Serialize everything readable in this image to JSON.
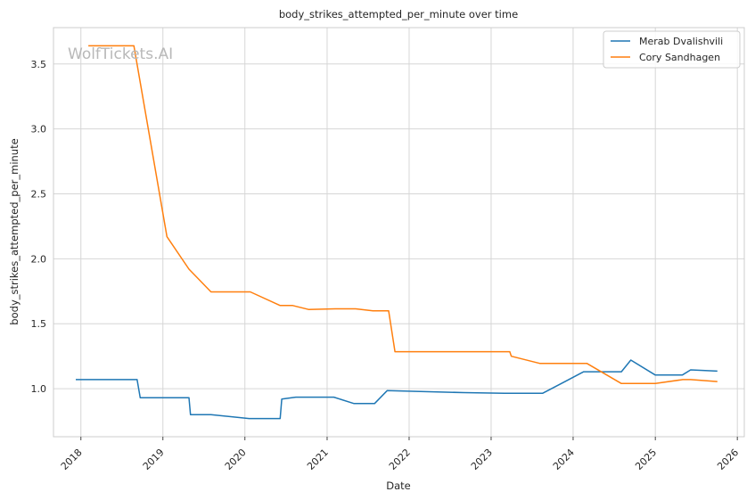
{
  "chart_data": {
    "type": "line",
    "title": "body_strikes_attempted_per_minute over time",
    "xlabel": "Date",
    "ylabel": "body_strikes_attempted_per_minute",
    "watermark": "WolfTickets.AI",
    "xlim": [
      "2017-09-01",
      "2026-02-01"
    ],
    "ylim": [
      0.63,
      3.78
    ],
    "x_ticks": [
      "2018",
      "2019",
      "2020",
      "2021",
      "2022",
      "2023",
      "2024",
      "2025",
      "2026"
    ],
    "y_ticks": [
      "1.0",
      "1.5",
      "2.0",
      "2.5",
      "3.0",
      "3.5"
    ],
    "y_tick_values": [
      1.0,
      1.5,
      2.0,
      2.5,
      3.0,
      3.5
    ],
    "grid": true,
    "legend_position": "top-right",
    "series": [
      {
        "name": "Merab Dvalishvili",
        "color": "#1f77b4",
        "x": [
          "2017-12-09",
          "2018-09-08",
          "2018-09-22",
          "2019-04-27",
          "2019-05-04",
          "2019-08-03",
          "2020-01-20",
          "2020-06-06",
          "2020-06-13",
          "2020-08-15",
          "2021-01-31",
          "2021-05-01",
          "2021-07-31",
          "2021-09-25",
          "2022-09-01",
          "2023-03-01",
          "2023-08-19",
          "2024-02-17",
          "2024-08-03",
          "2024-09-14",
          "2025-01-01",
          "2025-05-01",
          "2025-06-07",
          "2025-10-04"
        ],
        "y": [
          1.07,
          1.07,
          0.93,
          0.93,
          0.8,
          0.8,
          0.77,
          0.77,
          0.92,
          0.935,
          0.935,
          0.885,
          0.885,
          0.985,
          0.97,
          0.965,
          0.965,
          1.13,
          1.13,
          1.22,
          1.105,
          1.105,
          1.145,
          1.135
        ]
      },
      {
        "name": "Cory Sandhagen",
        "color": "#ff7f0e",
        "x": [
          "2018-02-03",
          "2018-08-25",
          "2019-01-19",
          "2019-04-27",
          "2019-08-03",
          "2020-01-25",
          "2020-06-06",
          "2020-08-01",
          "2020-10-10",
          "2021-02-06",
          "2021-05-08",
          "2021-07-24",
          "2021-10-02",
          "2021-10-30",
          "2023-03-25",
          "2023-04-01",
          "2023-08-05",
          "2024-03-02",
          "2024-08-03",
          "2025-01-01",
          "2025-05-03",
          "2025-06-07",
          "2025-10-04"
        ],
        "y": [
          3.64,
          3.64,
          2.17,
          1.92,
          1.745,
          1.745,
          1.64,
          1.64,
          1.61,
          1.615,
          1.615,
          1.6,
          1.6,
          1.285,
          1.285,
          1.25,
          1.195,
          1.195,
          1.04,
          1.04,
          1.07,
          1.07,
          1.055
        ]
      }
    ]
  }
}
